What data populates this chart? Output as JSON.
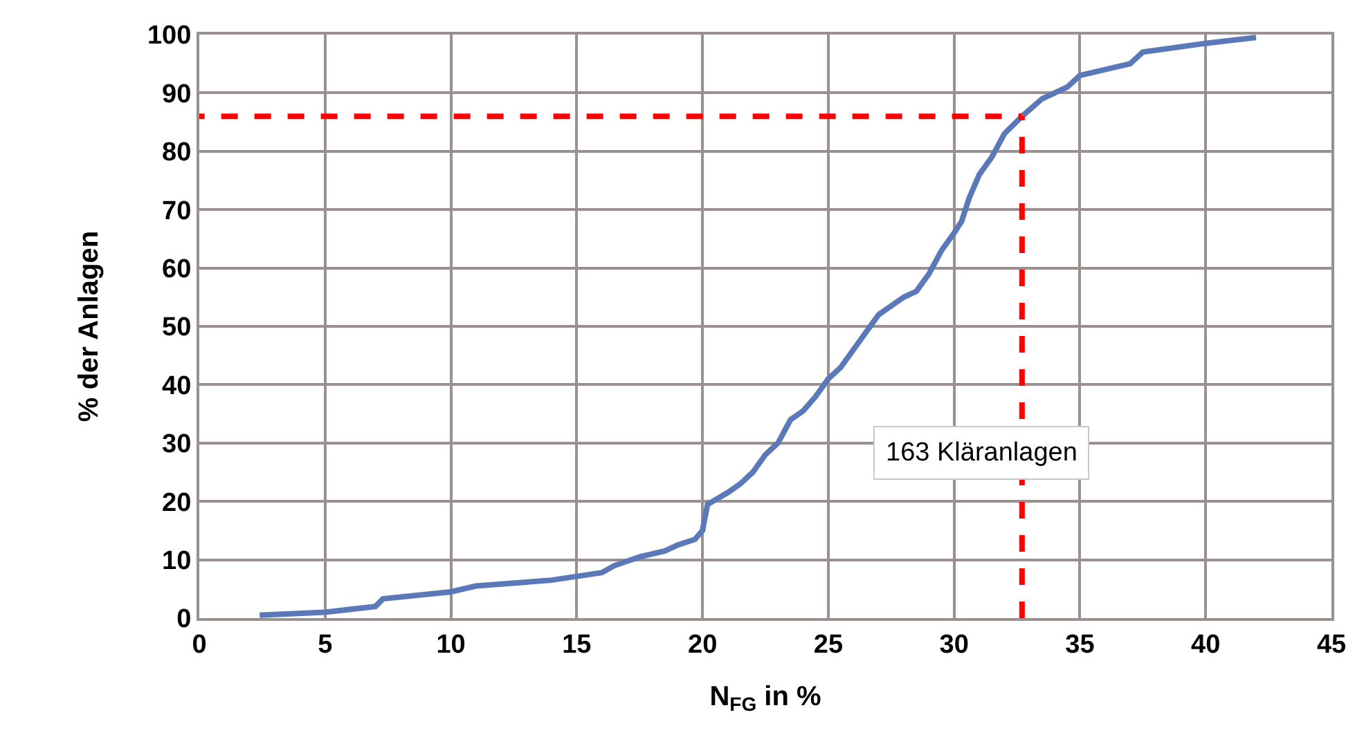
{
  "chart_data": {
    "type": "line",
    "xlabel": "N$_{FG}$ in %",
    "ylabel": "% der Anlagen",
    "x": [
      2.4,
      5,
      7,
      7.3,
      10,
      11,
      14,
      16,
      16.5,
      17.5,
      18.5,
      19,
      19.7,
      20,
      20.2,
      21,
      21.5,
      22,
      22.5,
      23,
      23.5,
      24,
      24.5,
      25,
      25.5,
      26,
      26.5,
      27,
      27.5,
      28,
      28.5,
      29,
      29.5,
      30,
      30.3,
      30.6,
      31,
      31.5,
      32,
      32.7,
      33.5,
      34.5,
      35,
      37,
      37.5,
      40,
      42
    ],
    "series": [
      {
        "color": "#5b78b8",
        "values": [
          0.5,
          1,
          2,
          3.3,
          4.5,
          5.5,
          6.5,
          7.8,
          9,
          10.5,
          11.5,
          12.5,
          13.5,
          15,
          19.5,
          21.5,
          23,
          25,
          28,
          30,
          34,
          35.5,
          38,
          41,
          43,
          46,
          49,
          52,
          53.5,
          55,
          56,
          59,
          63,
          66,
          68,
          72,
          76,
          79,
          83,
          86,
          89,
          91,
          93,
          95,
          97,
          98.5,
          99.5
        ]
      }
    ],
    "xlim": [
      0,
      45
    ],
    "xticks": [
      0,
      5,
      10,
      15,
      20,
      25,
      30,
      35,
      40,
      45
    ],
    "ylim": [
      0,
      100
    ],
    "yticks": [
      0,
      10,
      20,
      30,
      40,
      50,
      60,
      70,
      80,
      90,
      100
    ],
    "grid": true,
    "marker": "none",
    "line_style": "solid",
    "ref_lines": [
      {
        "axis": "y",
        "value": 86,
        "color": "#ff0000",
        "line_style": "dashed"
      },
      {
        "axis": "x",
        "value": 32.7,
        "color": "#ff0000",
        "line_style": "dashed"
      }
    ],
    "annotations": [
      "163 Kläranlagen"
    ]
  }
}
